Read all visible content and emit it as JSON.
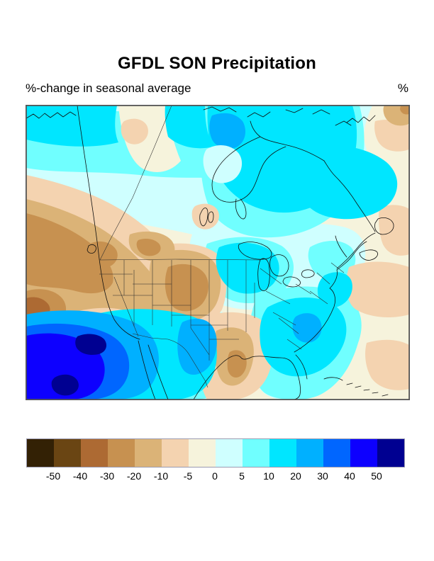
{
  "page": {
    "title": "GFDL SON Precipitation",
    "subtitle": "%-change in seasonal average",
    "unit_label": "%"
  },
  "chart_data": {
    "type": "heatmap",
    "subtype": "filled-contour-map",
    "title": "GFDL SON Precipitation",
    "subtitle": "%-change in seasonal average",
    "units": "%",
    "region": "North America (Canada, United States, northern Mexico) with state and province borders",
    "legend_position": "bottom",
    "colorbar": {
      "tick_labels": [
        "-50",
        "-40",
        "-30",
        "-20",
        "-10",
        "-5",
        "0",
        "5",
        "10",
        "20",
        "30",
        "40",
        "50"
      ],
      "colors": [
        "#332105",
        "#6a4513",
        "#ad6a33",
        "#c79150",
        "#dbb377",
        "#f4d3b0",
        "#f6f3dc",
        "#cfffff",
        "#70ffff",
        "#00e6ff",
        "#00b0ff",
        "#0066ff",
        "#0d00ff",
        "#000091"
      ],
      "negative_hue": "brown (drier)",
      "positive_hue": "blue (wetter)"
    },
    "features": [
      {
        "area": "Pacific Ocean off southern California / Baja",
        "value_pct": "+40 to >+50 (navy core)"
      },
      {
        "area": "Pacific Northwest / Great Basin (OR, ID, NV, N-CA)",
        "value_pct": "-30 to -20"
      },
      {
        "area": "Colorado / Wyoming interior",
        "value_pct": "-20 to -10"
      },
      {
        "area": "Montana patch",
        "value_pct": "-20 to -10"
      },
      {
        "area": "Louisiana / lower Mississippi valley",
        "value_pct": "-20 to -10"
      },
      {
        "area": "Southwest US and northern Mexico (AZ, NM, W-TX)",
        "value_pct": "+20 to +30"
      },
      {
        "area": "Southeast US (Carolinas, Georgia core)",
        "value_pct": "+10 to +30"
      },
      {
        "area": "Upper Midwest / Great Lakes",
        "value_pct": "+10 to +20"
      },
      {
        "area": "Arctic coast, Hudson Bay and Quebec / Labrador",
        "value_pct": "+10 to +20"
      },
      {
        "area": "Mid-Atlantic coastal band (Chesapeake)",
        "value_pct": "+10 to +20"
      },
      {
        "area": "Central Great Plains and mid-Canada band",
        "value_pct": "-5 to +5"
      },
      {
        "area": "Western Atlantic / Caribbean patches",
        "value_pct": "-10 to -5"
      }
    ]
  }
}
